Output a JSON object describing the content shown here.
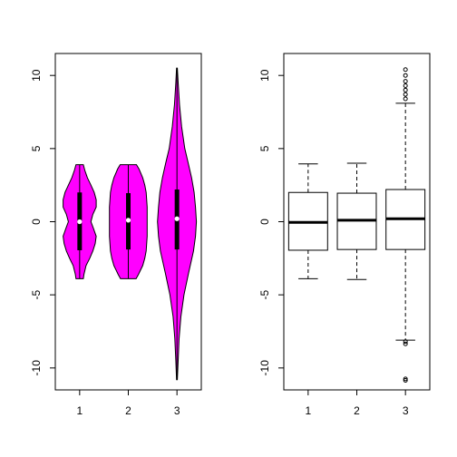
{
  "chart_data": [
    {
      "type": "violin",
      "title": "",
      "xlabel": "",
      "ylabel": "",
      "categories": [
        "1",
        "2",
        "3"
      ],
      "ylim": [
        -11.5,
        11.5
      ],
      "y_ticks": [
        "10",
        "5",
        "0",
        "-5",
        "-10"
      ],
      "y_tick_values": [
        10,
        5,
        0,
        -5,
        -10
      ],
      "fill_color": "#ff00ff",
      "series": [
        {
          "min": -3.9,
          "max": 3.9,
          "q1": -1.95,
          "median": 0.0,
          "q3": 2.0,
          "density": [
            [
              -3.9,
              0.19
            ],
            [
              -3.6,
              0.22
            ],
            [
              -3.0,
              0.33
            ],
            [
              -2.5,
              0.52
            ],
            [
              -2.0,
              0.68
            ],
            [
              -1.5,
              0.8
            ],
            [
              -1.0,
              0.85
            ],
            [
              -0.5,
              0.72
            ],
            [
              0.0,
              0.58
            ],
            [
              0.5,
              0.68
            ],
            [
              1.0,
              0.85
            ],
            [
              1.5,
              0.85
            ],
            [
              2.0,
              0.75
            ],
            [
              2.5,
              0.58
            ],
            [
              3.0,
              0.4
            ],
            [
              3.5,
              0.27
            ],
            [
              3.9,
              0.19
            ]
          ]
        },
        {
          "min": -3.9,
          "max": 3.9,
          "q1": -1.9,
          "median": 0.1,
          "q3": 1.95,
          "density": [
            [
              -3.9,
              0.4
            ],
            [
              -3.6,
              0.52
            ],
            [
              -3.0,
              0.74
            ],
            [
              -2.5,
              0.85
            ],
            [
              -2.0,
              0.92
            ],
            [
              -1.0,
              0.97
            ],
            [
              0.0,
              0.97
            ],
            [
              1.0,
              0.97
            ],
            [
              2.0,
              0.92
            ],
            [
              2.5,
              0.85
            ],
            [
              3.0,
              0.74
            ],
            [
              3.6,
              0.55
            ],
            [
              3.9,
              0.42
            ]
          ]
        },
        {
          "min": -10.8,
          "max": 10.5,
          "q1": -1.9,
          "median": 0.2,
          "q3": 2.2,
          "density": [
            [
              -10.8,
              0.02
            ],
            [
              -9.5,
              0.06
            ],
            [
              -8.0,
              0.11
            ],
            [
              -6.5,
              0.2
            ],
            [
              -5.0,
              0.36
            ],
            [
              -3.5,
              0.6
            ],
            [
              -2.0,
              0.85
            ],
            [
              -1.0,
              0.95
            ],
            [
              0.0,
              1.0
            ],
            [
              1.0,
              0.95
            ],
            [
              2.0,
              0.88
            ],
            [
              3.0,
              0.75
            ],
            [
              4.0,
              0.58
            ],
            [
              5.0,
              0.4
            ],
            [
              6.5,
              0.24
            ],
            [
              8.0,
              0.13
            ],
            [
              9.5,
              0.06
            ],
            [
              10.5,
              0.02
            ]
          ]
        }
      ]
    },
    {
      "type": "box",
      "title": "",
      "xlabel": "",
      "ylabel": "",
      "categories": [
        "1",
        "2",
        "3"
      ],
      "ylim": [
        -11.5,
        11.5
      ],
      "y_ticks": [
        "10",
        "5",
        "0",
        "-5",
        "-10"
      ],
      "y_tick_values": [
        10,
        5,
        0,
        -5,
        -10
      ],
      "series": [
        {
          "whisker_low": -3.9,
          "q1": -1.95,
          "median": -0.05,
          "q3": 2.0,
          "whisker_high": 3.95,
          "outliers": []
        },
        {
          "whisker_low": -3.95,
          "q1": -1.9,
          "median": 0.1,
          "q3": 1.95,
          "whisker_high": 4.0,
          "outliers": []
        },
        {
          "whisker_low": -8.1,
          "q1": -1.9,
          "median": 0.2,
          "q3": 2.2,
          "whisker_high": 8.1,
          "outliers": [
            10.4,
            10.0,
            9.6,
            9.3,
            9.0,
            8.7,
            8.4,
            -8.2,
            -8.35,
            -10.75,
            -10.85
          ]
        }
      ]
    }
  ]
}
